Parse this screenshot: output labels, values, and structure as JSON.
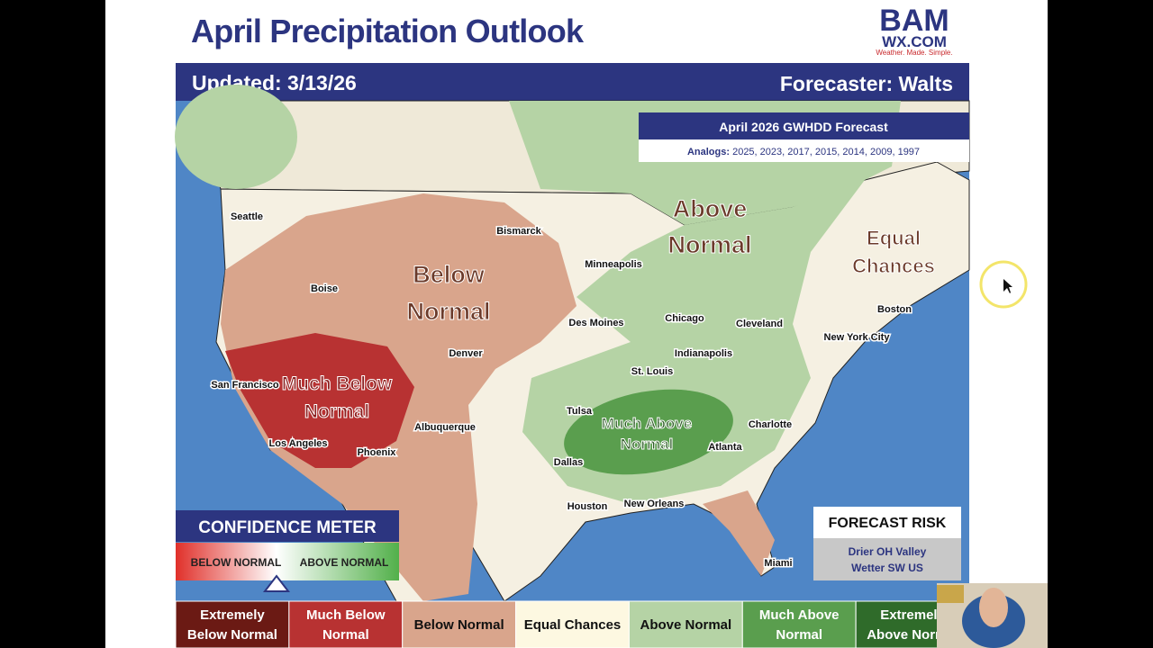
{
  "slide": {
    "title": "April Precipitation Outlook",
    "logo": {
      "name": "BAM",
      "site": "WX.COM",
      "tagline": "Weather. Made. Simple."
    }
  },
  "header": {
    "updated": "Updated: 3/13/26",
    "forecaster": "Forecaster: Walts"
  },
  "forecast_box": {
    "title": "April 2026 GWHDD Forecast",
    "analogs_label": "Analogs:",
    "analogs": "2025, 2023, 2017, 2015, 2014, 2009, 1997"
  },
  "regions": {
    "above": [
      "Above",
      "Normal"
    ],
    "equal": [
      "Equal",
      "Chances"
    ],
    "below": [
      "Below",
      "Normal"
    ],
    "much_below": [
      "Much Below",
      "Normal"
    ],
    "much_above": [
      "Much Above",
      "Normal"
    ]
  },
  "cities": [
    "Seattle",
    "Bismarck",
    "Minneapolis",
    "Boise",
    "Des Moines",
    "Chicago",
    "Cleveland",
    "Boston",
    "New York City",
    "Indianapolis",
    "Denver",
    "St. Louis",
    "San Francisco",
    "Tulsa",
    "Charlotte",
    "Albuquerque",
    "Los Angeles",
    "Phoenix",
    "Atlanta",
    "Dallas",
    "Houston",
    "New Orleans",
    "Miami"
  ],
  "confidence_meter": {
    "title": "CONFIDENCE METER",
    "left": "BELOW NORMAL",
    "right": "ABOVE NORMAL"
  },
  "forecast_risk": {
    "title": "FORECAST RISK",
    "lines": [
      "Drier OH Valley",
      "Wetter SW US"
    ]
  },
  "legend": [
    [
      "Extremely",
      "Below Normal"
    ],
    [
      "Much Below",
      "Normal"
    ],
    [
      "Below Normal"
    ],
    [
      "Equal Chances"
    ],
    [
      "Above Normal"
    ],
    [
      "Much Above",
      "Normal"
    ],
    [
      "Extremely",
      "Above Normal"
    ]
  ]
}
